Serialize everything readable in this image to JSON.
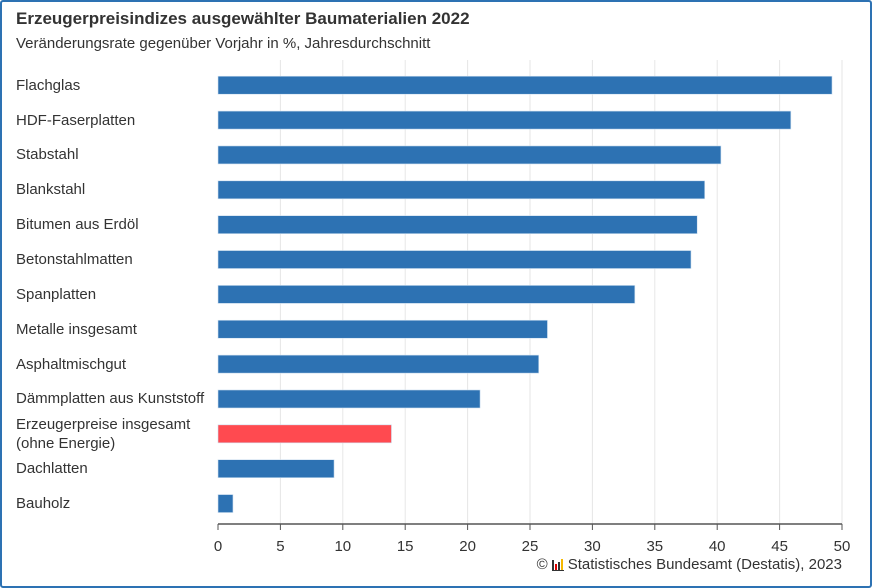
{
  "chart_data": {
    "type": "bar",
    "orientation": "horizontal",
    "title": "Erzeugerpreisindizes ausgewählter Baumaterialien 2022",
    "subtitle": "Veränderungsrate gegenüber Vorjahr in %, Jahresdurchschnitt",
    "categories": [
      "Flachglas",
      "HDF-Faserplatten",
      "Stabstahl",
      "Blankstahl",
      "Bitumen aus Erdöl",
      "Betonstahlmatten",
      "Spanplatten",
      "Metalle insgesamt",
      "Asphaltmischgut",
      "Dämmplatten aus Kunststoff",
      "Erzeugerpreise insgesamt (ohne Energie)",
      "Dachlatten",
      "Bauholz"
    ],
    "values": [
      49.2,
      45.9,
      40.3,
      39.0,
      38.4,
      37.9,
      33.4,
      26.4,
      25.7,
      21.0,
      13.9,
      9.3,
      1.2
    ],
    "highlight_index": 10,
    "colors": {
      "bar": "#2d72b3",
      "highlight": "#ff4a50",
      "grid": "#e6e6e6",
      "border": "#2d72b3"
    },
    "xlim": [
      0,
      50
    ],
    "xticks": [
      "0",
      "5",
      "10",
      "15",
      "20",
      "25",
      "30",
      "35",
      "40",
      "45",
      "50"
    ],
    "grid": true,
    "legend": "none"
  },
  "source": {
    "copyright_symbol": "©",
    "text": "Statistisches Bundesamt (Destatis), 2023"
  }
}
